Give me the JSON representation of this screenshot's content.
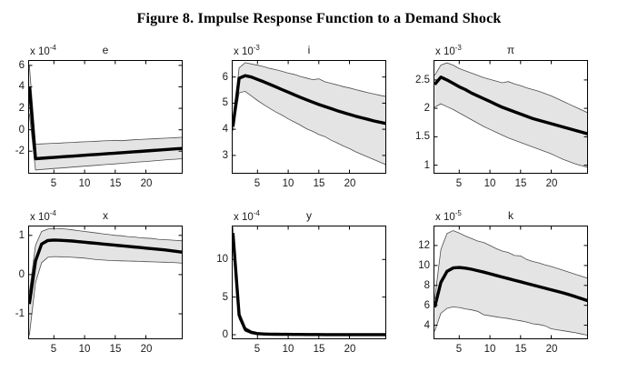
{
  "figure": {
    "title": "Figure 8. Impulse Response Function to a Demand Shock"
  },
  "colors": {
    "background": "#ffffff",
    "band_fill": "#e4e4e4",
    "band_edge": "#4d4d4d",
    "median_line": "#000000",
    "axis": "#000000",
    "text": "#1a1a1a"
  },
  "x_values": [
    1,
    2,
    3,
    4,
    5,
    6,
    7,
    8,
    9,
    10,
    11,
    12,
    13,
    14,
    15,
    16,
    17,
    18,
    19,
    20,
    21,
    22,
    23,
    24,
    25,
    26
  ],
  "chart_data": [
    {
      "type": "line",
      "name": "e",
      "title": "e",
      "scale_base": "x 10",
      "scale_exp": "-4",
      "x_ticks": [
        5,
        10,
        15,
        20
      ],
      "y_ticks": [
        6,
        4,
        2,
        0,
        -2
      ],
      "xlim": [
        0.8,
        26
      ],
      "ylim": [
        -4.1,
        6.5
      ],
      "grid": false,
      "legend": false,
      "series": [
        {
          "name": "median",
          "values": [
            4.0,
            -2.7,
            -2.66,
            -2.62,
            -2.58,
            -2.54,
            -2.5,
            -2.46,
            -2.42,
            -2.38,
            -2.34,
            -2.3,
            -2.26,
            -2.22,
            -2.18,
            -2.14,
            -2.1,
            -2.06,
            -2.02,
            -1.98,
            -1.94,
            -1.9,
            -1.86,
            -1.82,
            -1.78,
            -1.74
          ]
        },
        {
          "name": "upper_band",
          "values": [
            6.0,
            -1.35,
            -1.32,
            -1.29,
            -1.26,
            -1.24,
            -1.21,
            -1.18,
            -1.15,
            -1.12,
            -1.1,
            -1.07,
            -1.04,
            -1.01,
            -0.99,
            -1.02,
            -0.98,
            -0.94,
            -0.91,
            -0.88,
            -0.85,
            -0.82,
            -0.79,
            -0.76,
            -0.73,
            -0.7
          ]
        },
        {
          "name": "lower_band",
          "values": [
            1.5,
            -3.75,
            -3.7,
            -3.66,
            -3.61,
            -3.57,
            -3.53,
            -3.48,
            -3.44,
            -3.4,
            -3.35,
            -3.31,
            -3.26,
            -3.22,
            -3.18,
            -3.13,
            -3.09,
            -3.04,
            -3.0,
            -2.96,
            -2.91,
            -2.87,
            -2.82,
            -2.78,
            -2.74,
            -2.7
          ]
        }
      ]
    },
    {
      "type": "line",
      "name": "i",
      "title": "i",
      "scale_base": "x 10",
      "scale_exp": "-3",
      "x_ticks": [
        5,
        10,
        15,
        20
      ],
      "y_ticks": [
        6,
        5,
        4,
        3
      ],
      "xlim": [
        0.8,
        26
      ],
      "ylim": [
        2.3,
        6.65
      ],
      "grid": false,
      "legend": false,
      "series": [
        {
          "name": "median",
          "values": [
            4.1,
            5.95,
            6.05,
            6.0,
            5.91,
            5.82,
            5.72,
            5.62,
            5.52,
            5.42,
            5.32,
            5.22,
            5.13,
            5.04,
            4.95,
            4.87,
            4.79,
            4.71,
            4.64,
            4.57,
            4.5,
            4.44,
            4.38,
            4.32,
            4.27,
            4.22
          ]
        },
        {
          "name": "upper_band",
          "values": [
            4.25,
            6.35,
            6.55,
            6.5,
            6.45,
            6.4,
            6.33,
            6.28,
            6.22,
            6.15,
            6.1,
            6.02,
            5.96,
            5.9,
            5.93,
            5.82,
            5.76,
            5.7,
            5.63,
            5.58,
            5.52,
            5.46,
            5.4,
            5.35,
            5.3,
            5.25
          ]
        },
        {
          "name": "lower_band",
          "values": [
            3.95,
            5.4,
            5.45,
            5.28,
            5.1,
            4.95,
            4.8,
            4.66,
            4.54,
            4.4,
            4.28,
            4.16,
            4.02,
            3.92,
            3.8,
            3.72,
            3.58,
            3.48,
            3.36,
            3.26,
            3.14,
            3.04,
            2.94,
            2.84,
            2.74,
            2.64
          ]
        }
      ]
    },
    {
      "type": "line",
      "name": "pi",
      "title": "π",
      "scale_base": "x 10",
      "scale_exp": "-3",
      "x_ticks": [
        5,
        10,
        15,
        20
      ],
      "y_ticks": [
        2.5,
        2,
        1.5,
        1
      ],
      "xlim": [
        0.8,
        26
      ],
      "ylim": [
        0.85,
        2.85
      ],
      "grid": false,
      "legend": false,
      "series": [
        {
          "name": "median",
          "values": [
            2.42,
            2.55,
            2.5,
            2.44,
            2.38,
            2.33,
            2.27,
            2.22,
            2.17,
            2.12,
            2.07,
            2.02,
            1.98,
            1.94,
            1.9,
            1.86,
            1.82,
            1.79,
            1.76,
            1.73,
            1.7,
            1.67,
            1.64,
            1.61,
            1.58,
            1.55
          ]
        },
        {
          "name": "upper_band",
          "values": [
            2.58,
            2.76,
            2.8,
            2.76,
            2.7,
            2.66,
            2.62,
            2.58,
            2.54,
            2.51,
            2.48,
            2.45,
            2.47,
            2.43,
            2.4,
            2.36,
            2.33,
            2.3,
            2.26,
            2.22,
            2.17,
            2.12,
            2.07,
            2.02,
            1.97,
            1.92
          ]
        },
        {
          "name": "lower_band",
          "values": [
            2.02,
            2.08,
            2.03,
            1.98,
            1.92,
            1.86,
            1.8,
            1.74,
            1.68,
            1.63,
            1.58,
            1.53,
            1.48,
            1.44,
            1.4,
            1.36,
            1.32,
            1.28,
            1.24,
            1.2,
            1.15,
            1.1,
            1.06,
            1.02,
            0.99,
            0.96
          ]
        }
      ]
    },
    {
      "type": "line",
      "name": "x",
      "title": "x",
      "scale_base": "x 10",
      "scale_exp": "-4",
      "x_ticks": [
        5,
        10,
        15,
        20
      ],
      "y_ticks": [
        1,
        0,
        -1
      ],
      "xlim": [
        0.8,
        26
      ],
      "ylim": [
        -1.65,
        1.25
      ],
      "grid": false,
      "legend": false,
      "series": [
        {
          "name": "median",
          "values": [
            -0.75,
            0.35,
            0.78,
            0.87,
            0.88,
            0.875,
            0.865,
            0.855,
            0.84,
            0.825,
            0.81,
            0.795,
            0.78,
            0.765,
            0.75,
            0.735,
            0.72,
            0.705,
            0.69,
            0.675,
            0.66,
            0.645,
            0.63,
            0.61,
            0.59,
            0.57
          ]
        },
        {
          "name": "upper_band",
          "values": [
            -0.45,
            0.75,
            1.1,
            1.16,
            1.18,
            1.17,
            1.16,
            1.14,
            1.12,
            1.1,
            1.08,
            1.06,
            1.04,
            1.02,
            1.0,
            0.99,
            0.97,
            0.96,
            0.94,
            0.93,
            0.92,
            0.9,
            0.89,
            0.88,
            0.87,
            0.86
          ]
        },
        {
          "name": "lower_band",
          "values": [
            -1.55,
            -0.2,
            0.3,
            0.44,
            0.46,
            0.455,
            0.45,
            0.44,
            0.43,
            0.42,
            0.4,
            0.38,
            0.37,
            0.36,
            0.355,
            0.35,
            0.345,
            0.34,
            0.335,
            0.33,
            0.325,
            0.32,
            0.315,
            0.31,
            0.3,
            0.29
          ]
        }
      ]
    },
    {
      "type": "line",
      "name": "y",
      "title": "y",
      "scale_base": "x 10",
      "scale_exp": "-4",
      "x_ticks": [
        5,
        10,
        15,
        20
      ],
      "y_ticks": [
        10,
        5,
        0
      ],
      "xlim": [
        0.8,
        26
      ],
      "ylim": [
        -0.6,
        14.5
      ],
      "grid": false,
      "legend": false,
      "series": [
        {
          "name": "median",
          "values": [
            13.5,
            2.6,
            0.7,
            0.3,
            0.15,
            0.1,
            0.08,
            0.06,
            0.05,
            0.05,
            0.04,
            0.04,
            0.03,
            0.03,
            0.03,
            0.02,
            0.02,
            0.02,
            0.02,
            0.02,
            0.02,
            0.02,
            0.02,
            0.02,
            0.02,
            0.02
          ]
        },
        {
          "name": "upper_band",
          "values": [
            14.3,
            3.1,
            1.0,
            0.5,
            0.3,
            0.22,
            0.18,
            0.15,
            0.13,
            0.12,
            0.11,
            0.1,
            0.1,
            0.09,
            0.09,
            0.08,
            0.08,
            0.08,
            0.07,
            0.07,
            0.07,
            0.07,
            0.06,
            0.06,
            0.06,
            0.06
          ]
        },
        {
          "name": "lower_band",
          "values": [
            12.5,
            2.1,
            0.45,
            0.15,
            0.02,
            -0.02,
            -0.04,
            -0.05,
            -0.05,
            -0.06,
            -0.06,
            -0.06,
            -0.06,
            -0.06,
            -0.06,
            -0.06,
            -0.07,
            -0.07,
            -0.07,
            -0.07,
            -0.07,
            -0.07,
            -0.07,
            -0.07,
            -0.07,
            -0.07
          ]
        }
      ]
    },
    {
      "type": "line",
      "name": "k",
      "title": "k",
      "scale_base": "x 10",
      "scale_exp": "-5",
      "x_ticks": [
        5,
        10,
        15,
        20
      ],
      "y_ticks": [
        12,
        10,
        8,
        6,
        4
      ],
      "xlim": [
        0.8,
        26
      ],
      "ylim": [
        2.6,
        14.0
      ],
      "grid": false,
      "legend": false,
      "series": [
        {
          "name": "median",
          "values": [
            5.8,
            8.3,
            9.4,
            9.75,
            9.8,
            9.73,
            9.62,
            9.48,
            9.33,
            9.17,
            9.0,
            8.84,
            8.68,
            8.52,
            8.36,
            8.2,
            8.04,
            7.88,
            7.72,
            7.56,
            7.4,
            7.24,
            7.06,
            6.86,
            6.66,
            6.46
          ]
        },
        {
          "name": "upper_band",
          "values": [
            6.6,
            11.6,
            13.2,
            13.5,
            13.25,
            12.95,
            12.7,
            12.45,
            12.3,
            12.0,
            11.7,
            11.45,
            11.3,
            11.0,
            10.95,
            10.6,
            10.4,
            10.25,
            10.05,
            9.9,
            9.7,
            9.5,
            9.3,
            9.1,
            8.9,
            8.7
          ]
        },
        {
          "name": "lower_band",
          "values": [
            3.4,
            5.2,
            5.7,
            5.85,
            5.78,
            5.65,
            5.55,
            5.4,
            5.05,
            4.95,
            4.85,
            4.75,
            4.68,
            4.55,
            4.45,
            4.32,
            4.15,
            4.08,
            3.95,
            3.65,
            3.55,
            3.45,
            3.35,
            3.25,
            3.12,
            3.0
          ]
        }
      ]
    }
  ]
}
